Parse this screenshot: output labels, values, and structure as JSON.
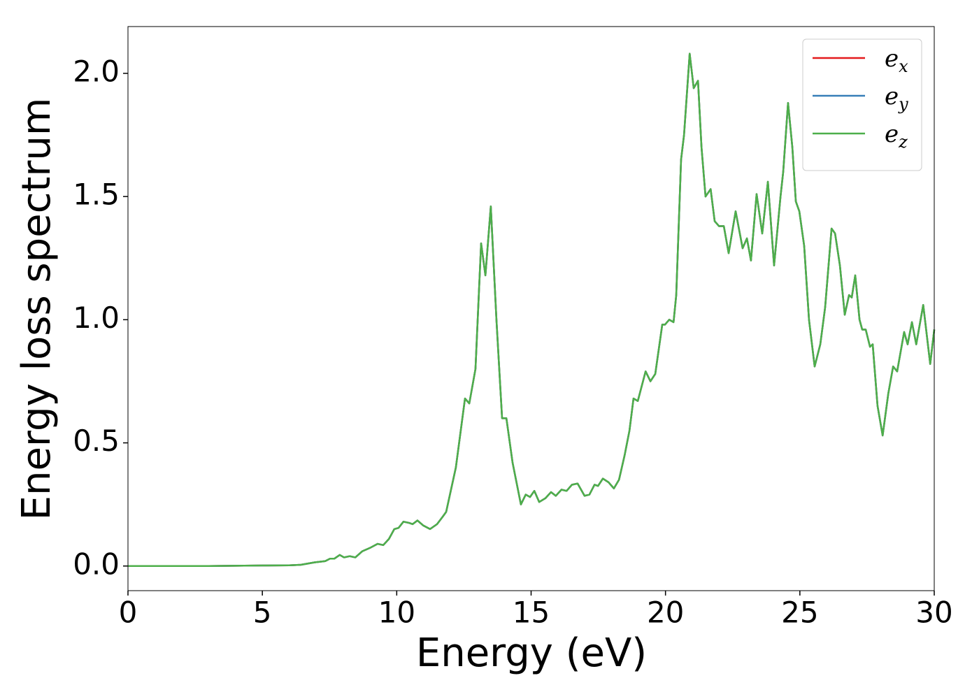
{
  "chart_data": {
    "type": "line",
    "xlabel": "Energy (eV)",
    "ylabel": "Energy loss spectrum",
    "xlim": [
      0,
      30
    ],
    "ylim": [
      -0.1,
      2.19
    ],
    "xticks": [
      0,
      5,
      10,
      15,
      20,
      25,
      30
    ],
    "yticks": [
      {
        "value": 0,
        "label": "0.0"
      },
      0.5,
      {
        "value": 1,
        "label": "1.0"
      },
      1.5,
      {
        "value": 2,
        "label": "2.0"
      }
    ],
    "legend": "upper right",
    "x": [
      0,
      1,
      2,
      3,
      4,
      5,
      6,
      6.43,
      6.95,
      7.34,
      7.52,
      7.68,
      7.88,
      8.04,
      8.25,
      8.46,
      8.72,
      9.03,
      9.29,
      9.5,
      9.71,
      9.91,
      10.07,
      10.25,
      10.46,
      10.59,
      10.77,
      10.98,
      11.24,
      11.5,
      11.71,
      11.84,
      11.9,
      12.2,
      12.54,
      12.7,
      12.93,
      13.14,
      13.3,
      13.5,
      13.71,
      13.92,
      14.08,
      14.31,
      14.62,
      14.8,
      14.96,
      15.12,
      15.3,
      15.53,
      15.74,
      15.92,
      16.13,
      16.32,
      16.52,
      16.73,
      16.99,
      17.17,
      17.36,
      17.49,
      17.67,
      17.88,
      18.08,
      18.27,
      18.48,
      18.66,
      18.81,
      18.97,
      19.26,
      19.44,
      19.62,
      19.75,
      19.88,
      19.98,
      20.14,
      20.3,
      20.4,
      20.58,
      20.69,
      20.9,
      21.05,
      21.21,
      21.34,
      21.49,
      21.68,
      21.83,
      21.99,
      22.17,
      22.35,
      22.61,
      22.87,
      23.03,
      23.18,
      23.39,
      23.6,
      23.81,
      24.04,
      24.28,
      24.38,
      24.56,
      24.72,
      24.85,
      24.98,
      25.16,
      25.34,
      25.55,
      25.76,
      25.94,
      26.18,
      26.31,
      26.49,
      26.67,
      26.83,
      26.93,
      27.06,
      27.22,
      27.32,
      27.45,
      27.61,
      27.71,
      27.89,
      28.08,
      28.29,
      28.47,
      28.62,
      28.88,
      29.01,
      29.17,
      29.33,
      29.59,
      29.85,
      30
    ],
    "series": [
      {
        "name": "ex",
        "color": "#e41a1c",
        "values": [
          0,
          0,
          0,
          0,
          0.001,
          0.002,
          0.003,
          0.005,
          0.015,
          0.02,
          0.03,
          0.03,
          0.045,
          0.035,
          0.04,
          0.035,
          0.06,
          0.075,
          0.09,
          0.085,
          0.11,
          0.15,
          0.155,
          0.18,
          0.175,
          0.17,
          0.185,
          0.165,
          0.15,
          0.17,
          0.2,
          0.22,
          0.25,
          0.4,
          0.68,
          0.66,
          0.8,
          1.31,
          1.18,
          1.46,
          1.0,
          0.6,
          0.6,
          0.42,
          0.25,
          0.29,
          0.28,
          0.305,
          0.26,
          0.275,
          0.3,
          0.285,
          0.31,
          0.305,
          0.33,
          0.335,
          0.285,
          0.29,
          0.33,
          0.325,
          0.355,
          0.34,
          0.315,
          0.35,
          0.45,
          0.55,
          0.68,
          0.67,
          0.79,
          0.75,
          0.78,
          0.88,
          0.98,
          0.98,
          1.0,
          0.99,
          1.1,
          1.65,
          1.75,
          2.08,
          1.94,
          1.97,
          1.7,
          1.5,
          1.53,
          1.4,
          1.38,
          1.38,
          1.27,
          1.44,
          1.29,
          1.33,
          1.24,
          1.51,
          1.35,
          1.56,
          1.22,
          1.5,
          1.6,
          1.88,
          1.7,
          1.48,
          1.44,
          1.3,
          1.0,
          0.81,
          0.9,
          1.05,
          1.37,
          1.35,
          1.22,
          1.02,
          1.1,
          1.09,
          1.18,
          1.0,
          0.96,
          0.96,
          0.89,
          0.9,
          0.65,
          0.53,
          0.7,
          0.81,
          0.79,
          0.95,
          0.9,
          0.99,
          0.9,
          1.06,
          0.82,
          0.96
        ]
      },
      {
        "name": "ey",
        "color": "#377eb8",
        "values": [
          0,
          0,
          0,
          0,
          0.001,
          0.002,
          0.003,
          0.005,
          0.015,
          0.02,
          0.03,
          0.03,
          0.045,
          0.035,
          0.04,
          0.035,
          0.06,
          0.075,
          0.09,
          0.085,
          0.11,
          0.15,
          0.155,
          0.18,
          0.175,
          0.17,
          0.185,
          0.165,
          0.15,
          0.17,
          0.2,
          0.22,
          0.25,
          0.4,
          0.68,
          0.66,
          0.8,
          1.31,
          1.18,
          1.46,
          1.0,
          0.6,
          0.6,
          0.42,
          0.25,
          0.29,
          0.28,
          0.305,
          0.26,
          0.275,
          0.3,
          0.285,
          0.31,
          0.305,
          0.33,
          0.335,
          0.285,
          0.29,
          0.33,
          0.325,
          0.355,
          0.34,
          0.315,
          0.35,
          0.45,
          0.55,
          0.68,
          0.67,
          0.79,
          0.75,
          0.78,
          0.88,
          0.98,
          0.98,
          1.0,
          0.99,
          1.1,
          1.65,
          1.75,
          2.08,
          1.94,
          1.97,
          1.7,
          1.5,
          1.53,
          1.4,
          1.38,
          1.38,
          1.27,
          1.44,
          1.29,
          1.33,
          1.24,
          1.51,
          1.35,
          1.56,
          1.22,
          1.5,
          1.6,
          1.88,
          1.7,
          1.48,
          1.44,
          1.3,
          1.0,
          0.81,
          0.9,
          1.05,
          1.37,
          1.35,
          1.22,
          1.02,
          1.1,
          1.09,
          1.18,
          1.0,
          0.96,
          0.96,
          0.89,
          0.9,
          0.65,
          0.53,
          0.7,
          0.81,
          0.79,
          0.95,
          0.9,
          0.99,
          0.9,
          1.06,
          0.82,
          0.96
        ]
      },
      {
        "name": "ez",
        "color": "#4daf4a",
        "values": [
          0,
          0,
          0,
          0,
          0.001,
          0.002,
          0.003,
          0.005,
          0.015,
          0.02,
          0.03,
          0.03,
          0.045,
          0.035,
          0.04,
          0.035,
          0.06,
          0.075,
          0.09,
          0.085,
          0.11,
          0.15,
          0.155,
          0.18,
          0.175,
          0.17,
          0.185,
          0.165,
          0.15,
          0.17,
          0.2,
          0.22,
          0.25,
          0.4,
          0.68,
          0.66,
          0.8,
          1.31,
          1.18,
          1.46,
          1.0,
          0.6,
          0.6,
          0.42,
          0.25,
          0.29,
          0.28,
          0.305,
          0.26,
          0.275,
          0.3,
          0.285,
          0.31,
          0.305,
          0.33,
          0.335,
          0.285,
          0.29,
          0.33,
          0.325,
          0.355,
          0.34,
          0.315,
          0.35,
          0.45,
          0.55,
          0.68,
          0.67,
          0.79,
          0.75,
          0.78,
          0.88,
          0.98,
          0.98,
          1.0,
          0.99,
          1.1,
          1.65,
          1.75,
          2.08,
          1.94,
          1.97,
          1.7,
          1.5,
          1.53,
          1.4,
          1.38,
          1.38,
          1.27,
          1.44,
          1.29,
          1.33,
          1.24,
          1.51,
          1.35,
          1.56,
          1.22,
          1.5,
          1.6,
          1.88,
          1.7,
          1.48,
          1.44,
          1.3,
          1.0,
          0.81,
          0.9,
          1.05,
          1.37,
          1.35,
          1.22,
          1.02,
          1.1,
          1.09,
          1.18,
          1.0,
          0.96,
          0.96,
          0.89,
          0.9,
          0.65,
          0.53,
          0.7,
          0.81,
          0.79,
          0.95,
          0.9,
          0.99,
          0.9,
          1.06,
          0.82,
          0.96
        ]
      }
    ]
  }
}
